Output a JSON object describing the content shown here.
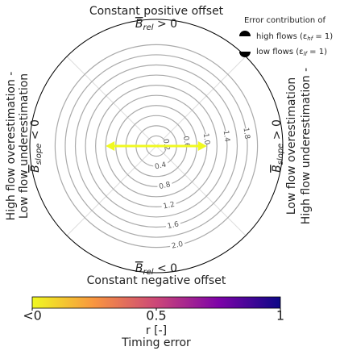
{
  "chart_data": {
    "type": "polar",
    "top_label": "Constant positive offset",
    "top_symbol": {
      "base": "B",
      "subscript": "rel",
      "relation": " > 0"
    },
    "bottom_label": "Constant negative offset",
    "bottom_symbol": {
      "base": "B",
      "subscript": "rel",
      "relation": " < 0"
    },
    "left_labels": [
      "High flow overestimation -",
      "Low flow underestimation"
    ],
    "left_symbol": {
      "base": "B",
      "subscript": "slope",
      "relation": " < 0"
    },
    "right_labels": [
      "Low flow overestimation",
      "High flow underestimation -"
    ],
    "right_symbol": {
      "base": "B",
      "subscript": "slope",
      "relation": " > 0"
    },
    "legend_title": "Error contribution of",
    "legend": [
      {
        "prefix": "high flows (ε",
        "subscript": "hf",
        "suffix": " = 1)"
      },
      {
        "prefix": "low flows (ε",
        "subscript": "lf",
        "suffix": " = 1)"
      }
    ],
    "rlim": [
      0,
      2.5
    ],
    "rticks": [
      0.2,
      0.4,
      0.6,
      0.8,
      {
        "value": 1.0,
        "label": "1.0"
      },
      1.2,
      1.4,
      1.6,
      1.8,
      {
        "value": 2.0,
        "label": "2.0"
      }
    ],
    "arrow": {
      "length": 1.0,
      "r_value": 0
    },
    "colormap": [
      "#f0f921",
      "#f89540",
      "#cc4778",
      "#7e03a8",
      "#0d0887"
    ],
    "colorbar": {
      "lim": [
        0,
        1
      ],
      "ticks": [
        {
          "value": 0,
          "label": "<0"
        },
        0.5,
        1
      ],
      "label": "r [-]",
      "sublabel": "Timing error"
    }
  }
}
